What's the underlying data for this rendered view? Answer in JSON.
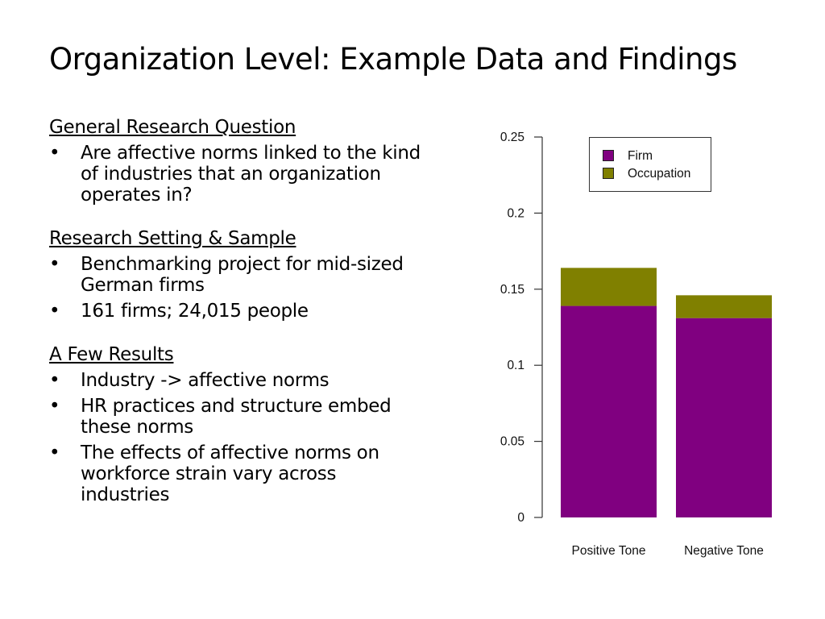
{
  "slide": {
    "title": "Organization Level: Example Data and Findings",
    "sections": [
      {
        "heading": "General Research Question",
        "bullets": [
          "Are affective norms linked to the kind of industries that an organization operates in?"
        ]
      },
      {
        "heading": "Research Setting & Sample",
        "bullets": [
          "Benchmarking project for mid-sized German firms",
          "161 firms; 24,015 people"
        ]
      },
      {
        "heading": "A Few Results",
        "bullets": [
          "Industry -> affective norms",
          "HR practices and structure embed these norms",
          "The effects of affective norms on workforce strain vary across industries"
        ]
      }
    ]
  },
  "chart_data": {
    "type": "bar",
    "stacked": true,
    "categories": [
      "Positive Tone",
      "Negative Tone"
    ],
    "series": [
      {
        "name": "Firm",
        "values": [
          0.139,
          0.131
        ],
        "color": "#800080"
      },
      {
        "name": "Occupation",
        "values": [
          0.025,
          0.015
        ],
        "color": "#808000"
      }
    ],
    "ylim": [
      0,
      0.25
    ],
    "yticks": [
      0,
      0.05,
      0.1,
      0.15,
      0.2,
      0.25
    ],
    "ytick_labels": [
      "0",
      "0.05",
      "0.1",
      "0.15",
      "0.2",
      "0.25"
    ],
    "grid": false,
    "legend": "top-right",
    "title": "",
    "xlabel": "",
    "ylabel": ""
  }
}
